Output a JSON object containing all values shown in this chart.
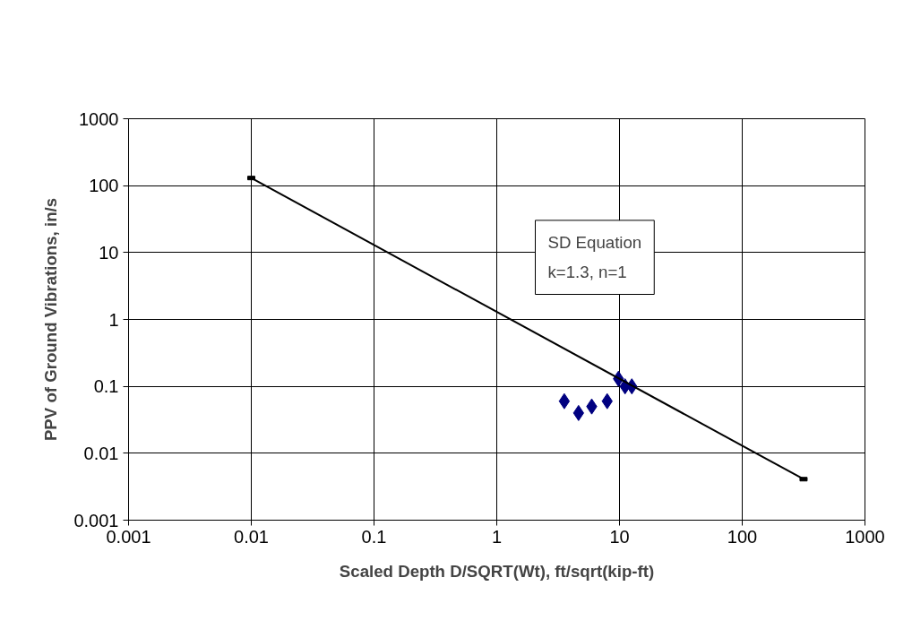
{
  "chart_data": {
    "type": "scatter",
    "xlabel": "Scaled Depth D/SQRT(Wt), ft/sqrt(kip-ft)",
    "ylabel": "PPV of Ground Vibrations, in/s",
    "log": "xy",
    "grid": true,
    "xlim": [
      0.001,
      1000
    ],
    "ylim": [
      0.001,
      1000
    ],
    "xticks": [
      0.001,
      0.01,
      0.1,
      1,
      10,
      100,
      1000
    ],
    "yticks": [
      0.001,
      0.01,
      0.1,
      1,
      10,
      100,
      1000
    ],
    "annotations": [
      "SD Equation",
      "k=1.3, n=1"
    ],
    "series": [
      {
        "marker": "diamond",
        "color": "#000080",
        "x": [
          3.55,
          4.64,
          5.94,
          7.94,
          9.8,
          11.1,
          12.6
        ],
        "values": [
          0.06,
          0.04,
          0.05,
          0.06,
          0.13,
          0.1,
          0.1
        ]
      },
      {
        "type": "line",
        "marker": "square",
        "line_style": "solid",
        "color": "#000000",
        "x": [
          0.01,
          316
        ],
        "values": [
          130,
          0.0041
        ]
      }
    ]
  }
}
